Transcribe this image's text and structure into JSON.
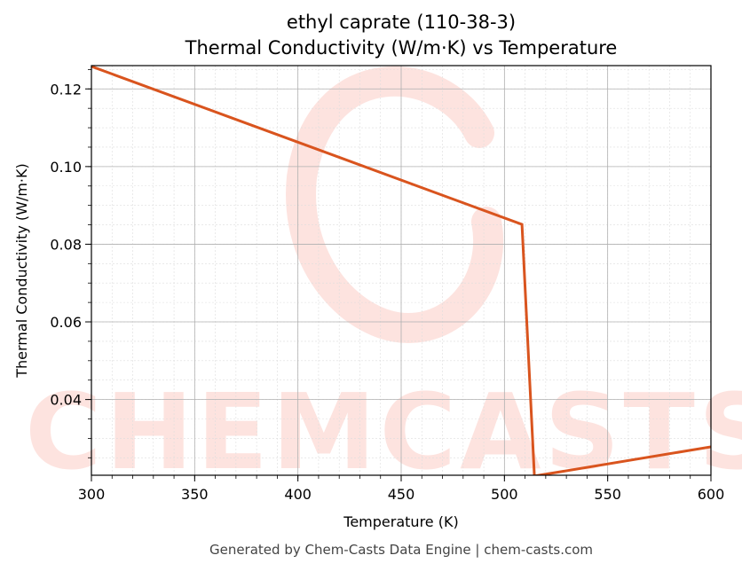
{
  "chart_data": {
    "type": "line",
    "title": "ethyl caprate (110-38-3)",
    "subtitle": "Thermal Conductivity (W/m·K) vs Temperature",
    "xlabel": "Temperature (K)",
    "ylabel": "Thermal Conductivity (W/m·K)",
    "xlim": [
      300,
      600
    ],
    "ylim": [
      0.0205,
      0.126
    ],
    "xticks": [
      300,
      350,
      400,
      450,
      500,
      550,
      600
    ],
    "yticks": [
      0.04,
      0.06,
      0.08,
      0.1,
      0.12
    ],
    "grid": true,
    "series": [
      {
        "color": "#d9541e",
        "x": [
          300,
          508.5,
          514.5,
          600
        ],
        "y": [
          0.1258,
          0.0851,
          0.0203,
          0.0278
        ]
      }
    ]
  },
  "watermark": {
    "text": "CHEMCASTS",
    "color": "#fde3df"
  },
  "footer": "Generated by Chem-Casts Data Engine | chem-casts.com"
}
